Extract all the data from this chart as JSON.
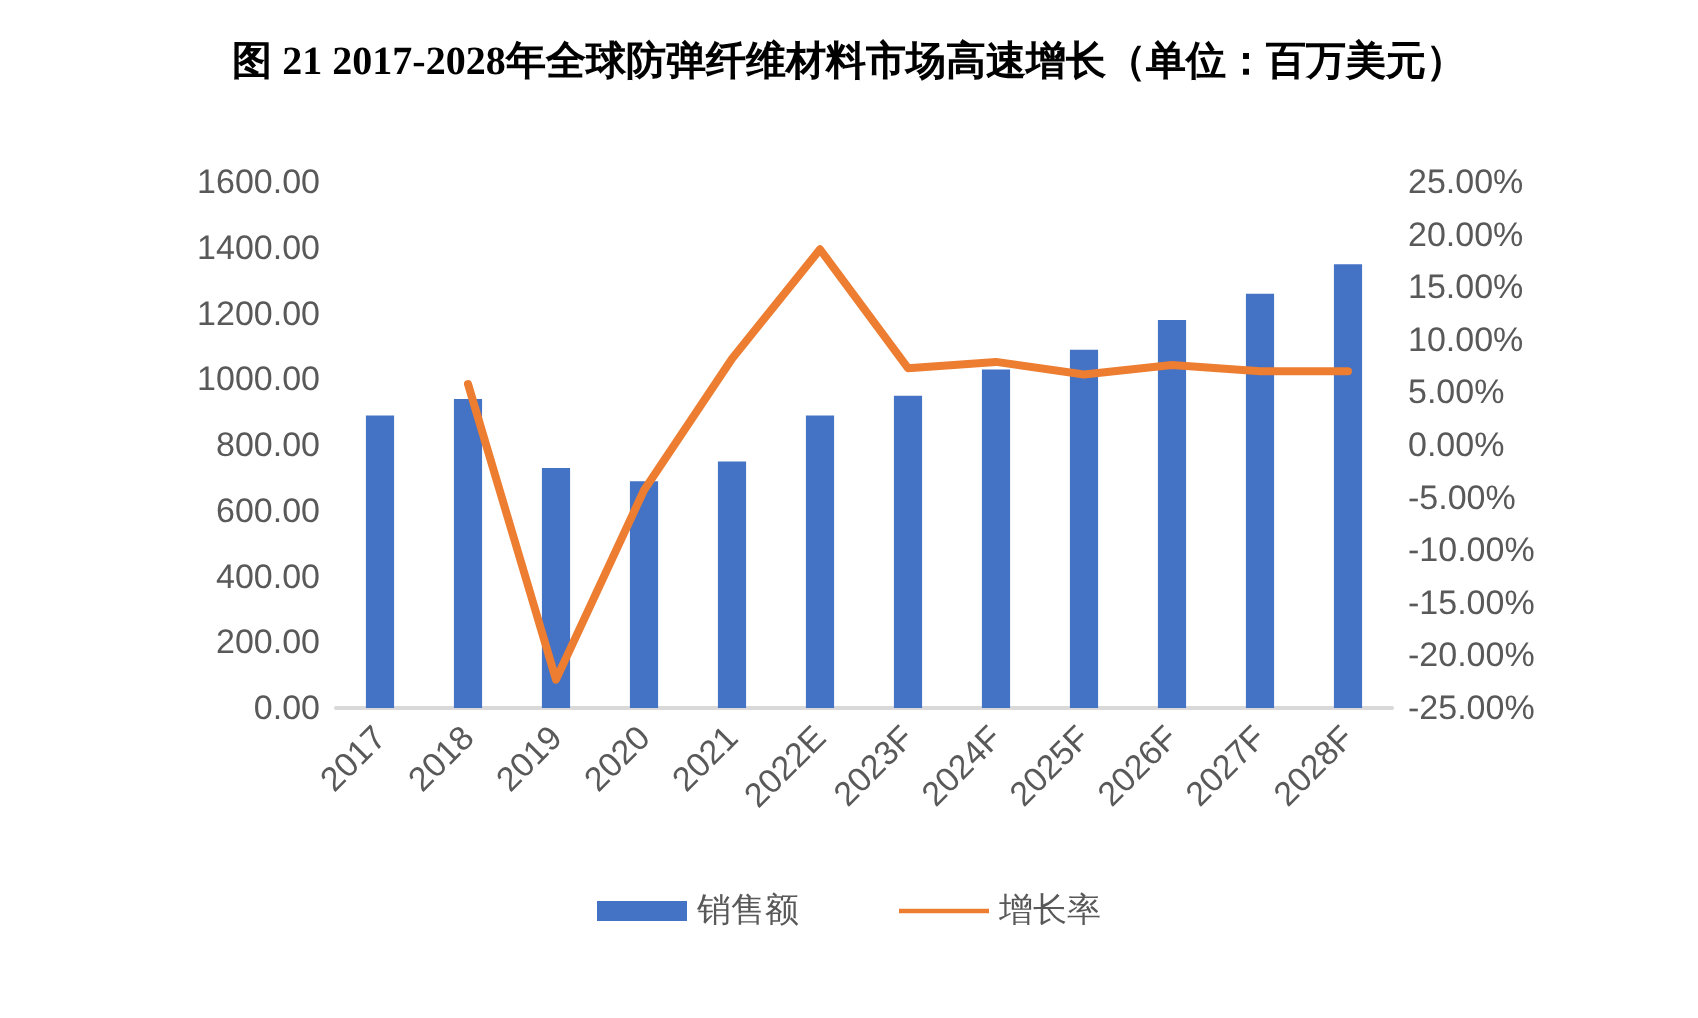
{
  "chart_data": {
    "type": "bar",
    "title": "图 21 2017-2028年全球防弹纤维材料市场高速增长（单位：百万美元）",
    "categories": [
      "2017",
      "2018",
      "2019",
      "2020",
      "2021",
      "2022E",
      "2023F",
      "2024F",
      "2025F",
      "2026F",
      "2027F",
      "2028F"
    ],
    "series": [
      {
        "name": "销售额",
        "color": "#4472c4",
        "values": [
          890,
          940,
          730,
          690,
          750,
          890,
          950,
          1030,
          1090,
          1180,
          1260,
          1350
        ]
      },
      {
        "name": "增长率",
        "type": "line",
        "axis": "y2",
        "color": "#ed7d31",
        "values": [
          null,
          5.8,
          -22.3,
          -4.3,
          8.2,
          18.6,
          7.3,
          7.9,
          6.7,
          7.6,
          7.0,
          7.0
        ]
      }
    ],
    "ylim": [
      0,
      1600
    ],
    "yticks": [
      {
        "value": 0,
        "label": "0.00"
      },
      {
        "value": 200,
        "label": "200.00"
      },
      {
        "value": 400,
        "label": "400.00"
      },
      {
        "value": 600,
        "label": "600.00"
      },
      {
        "value": 800,
        "label": "800.00"
      },
      {
        "value": 1000,
        "label": "1000.00"
      },
      {
        "value": 1200,
        "label": "1200.00"
      },
      {
        "value": 1400,
        "label": "1400.00"
      },
      {
        "value": 1600,
        "label": "1600.00"
      }
    ],
    "y2lim": [
      -25,
      25
    ],
    "y2ticks": [
      {
        "value": -25,
        "label": "-25.00%"
      },
      {
        "value": -20,
        "label": "-20.00%"
      },
      {
        "value": -15,
        "label": "-15.00%"
      },
      {
        "value": -10,
        "label": "-10.00%"
      },
      {
        "value": -5,
        "label": "-5.00%"
      },
      {
        "value": 0,
        "label": "0.00%"
      },
      {
        "value": 5,
        "label": "5.00%"
      },
      {
        "value": 10,
        "label": "10.00%"
      },
      {
        "value": 15,
        "label": "15.00%"
      },
      {
        "value": 20,
        "label": "20.00%"
      },
      {
        "value": 25,
        "label": "25.00%"
      }
    ],
    "grid": false,
    "legend": "bottom",
    "marker": "none",
    "line_style": "solid"
  }
}
